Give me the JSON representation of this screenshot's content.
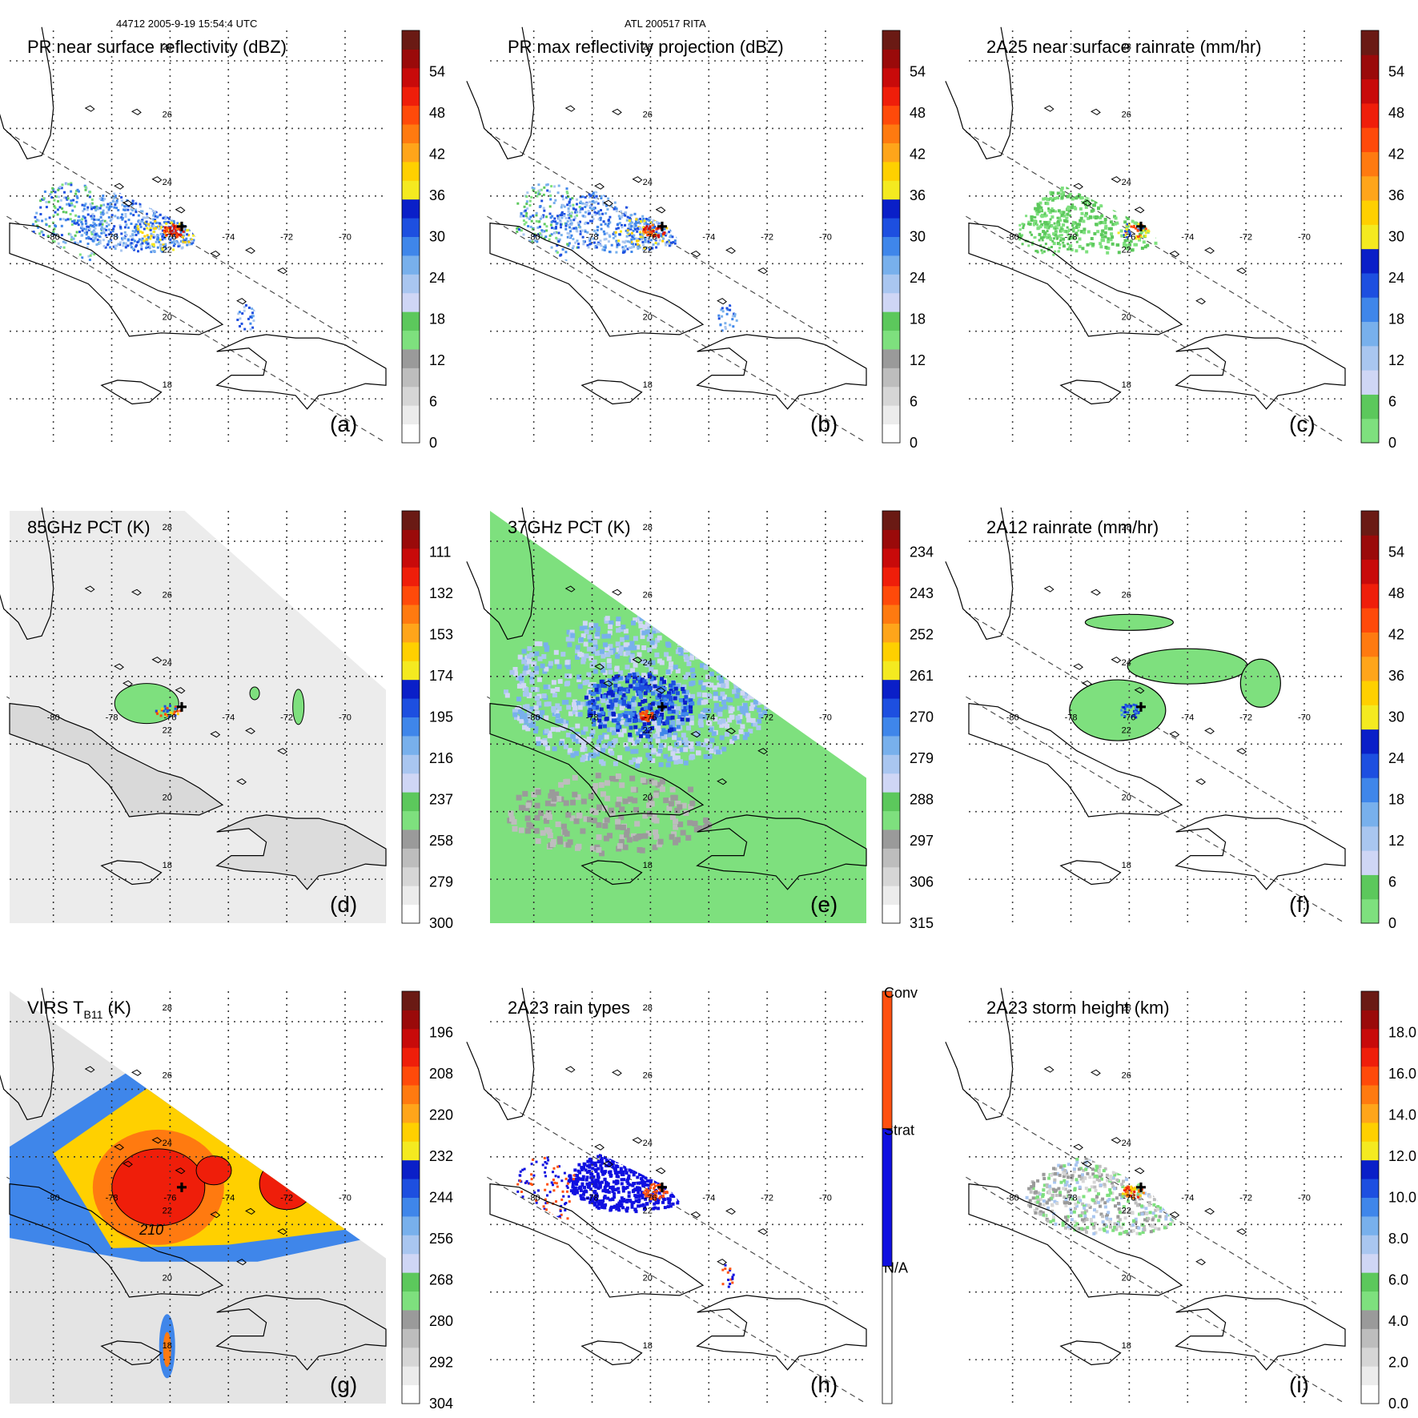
{
  "header": {
    "left": "44712 2005-9-19 15:54:4 UTC",
    "center": "ATL 200517 RITA"
  },
  "map": {
    "lat_labels": [
      "28",
      "26",
      "24",
      "22",
      "20",
      "18"
    ],
    "lon_labels": [
      "-80",
      "-78",
      "-76",
      "-74",
      "-72",
      "-70"
    ],
    "storm_center": {
      "lon": -75.6,
      "lat": 23.1
    }
  },
  "panels": [
    {
      "id": "a",
      "title": "PR near surface reflectivity (dBZ)",
      "label": "(a)",
      "colorbar": [
        "0",
        "6",
        "12",
        "18",
        "24",
        "30",
        "36",
        "42",
        "48",
        "54"
      ],
      "colors": [
        "#ffffff",
        "#ececec",
        "#d6d6d6",
        "#bdbdbd",
        "#9a9a9a",
        "#7ee07e",
        "#5cc85c",
        "#cfd6f5",
        "#a9c6f0",
        "#78b0ec",
        "#3f86ea",
        "#1d4fe0",
        "#0a1fc8",
        "#f4ea20",
        "#ffd000",
        "#ffa51a",
        "#ff7a10",
        "#ff4a0a",
        "#ef1e0a",
        "#c80a0a",
        "#9a0a0a",
        "#6a1a14"
      ]
    },
    {
      "id": "b",
      "title": "PR max reflectivity projection (dBZ)",
      "label": "(b)",
      "colorbar": [
        "0",
        "6",
        "12",
        "18",
        "24",
        "30",
        "36",
        "42",
        "48",
        "54"
      ],
      "colors": [
        "#ffffff",
        "#ececec",
        "#d6d6d6",
        "#bdbdbd",
        "#9a9a9a",
        "#7ee07e",
        "#5cc85c",
        "#cfd6f5",
        "#a9c6f0",
        "#78b0ec",
        "#3f86ea",
        "#1d4fe0",
        "#0a1fc8",
        "#f4ea20",
        "#ffd000",
        "#ffa51a",
        "#ff7a10",
        "#ff4a0a",
        "#ef1e0a",
        "#c80a0a",
        "#9a0a0a",
        "#6a1a14"
      ]
    },
    {
      "id": "c",
      "title": "2A25 near surface rainrate (mm/hr)",
      "label": "(c)",
      "colorbar": [
        "0",
        "6",
        "12",
        "18",
        "24",
        "30",
        "36",
        "42",
        "48",
        "54"
      ],
      "colors": [
        "#7ee07e",
        "#5cc85c",
        "#cfd6f5",
        "#a9c6f0",
        "#78b0ec",
        "#3f86ea",
        "#1d4fe0",
        "#0a1fc8",
        "#f4ea20",
        "#ffd000",
        "#ffa51a",
        "#ff7a10",
        "#ff4a0a",
        "#ef1e0a",
        "#c80a0a",
        "#9a0a0a",
        "#6a1a14"
      ]
    },
    {
      "id": "d",
      "title": "85GHz PCT (K)",
      "label": "(d)",
      "colorbar": [
        "300",
        "279",
        "258",
        "237",
        "216",
        "195",
        "174",
        "153",
        "132",
        "111"
      ],
      "colors": [
        "#ffffff",
        "#ececec",
        "#d6d6d6",
        "#bdbdbd",
        "#9a9a9a",
        "#7ee07e",
        "#5cc85c",
        "#cfd6f5",
        "#a9c6f0",
        "#78b0ec",
        "#3f86ea",
        "#1d4fe0",
        "#0a1fc8",
        "#f4ea20",
        "#ffd000",
        "#ffa51a",
        "#ff7a10",
        "#ff4a0a",
        "#ef1e0a",
        "#c80a0a",
        "#9a0a0a",
        "#6a1a14"
      ]
    },
    {
      "id": "e",
      "title": "37GHz PCT (K)",
      "label": "(e)",
      "colorbar": [
        "315",
        "306",
        "297",
        "288",
        "279",
        "270",
        "261",
        "252",
        "243",
        "234"
      ],
      "colors": [
        "#ffffff",
        "#ececec",
        "#d6d6d6",
        "#bdbdbd",
        "#9a9a9a",
        "#7ee07e",
        "#5cc85c",
        "#cfd6f5",
        "#a9c6f0",
        "#78b0ec",
        "#3f86ea",
        "#1d4fe0",
        "#0a1fc8",
        "#f4ea20",
        "#ffd000",
        "#ffa51a",
        "#ff7a10",
        "#ff4a0a",
        "#ef1e0a",
        "#c80a0a",
        "#9a0a0a",
        "#6a1a14"
      ]
    },
    {
      "id": "f",
      "title": "2A12 rainrate (mm/hr)",
      "label": "(f)",
      "colorbar": [
        "0",
        "6",
        "12",
        "18",
        "24",
        "30",
        "36",
        "42",
        "48",
        "54"
      ],
      "colors": [
        "#7ee07e",
        "#5cc85c",
        "#cfd6f5",
        "#a9c6f0",
        "#78b0ec",
        "#3f86ea",
        "#1d4fe0",
        "#0a1fc8",
        "#f4ea20",
        "#ffd000",
        "#ffa51a",
        "#ff7a10",
        "#ff4a0a",
        "#ef1e0a",
        "#c80a0a",
        "#9a0a0a",
        "#6a1a14"
      ]
    },
    {
      "id": "g",
      "title": "VIRS T",
      "title_sub": "B11",
      "title_suffix": " (K)",
      "label": "(g)",
      "colorbar": [
        "304",
        "292",
        "280",
        "268",
        "256",
        "244",
        "232",
        "220",
        "208",
        "196"
      ],
      "colors": [
        "#ffffff",
        "#ececec",
        "#d6d6d6",
        "#bdbdbd",
        "#9a9a9a",
        "#7ee07e",
        "#5cc85c",
        "#cfd6f5",
        "#a9c6f0",
        "#78b0ec",
        "#3f86ea",
        "#1d4fe0",
        "#0a1fc8",
        "#f4ea20",
        "#ffd000",
        "#ffa51a",
        "#ff7a10",
        "#ff4a0a",
        "#ef1e0a",
        "#c80a0a",
        "#9a0a0a",
        "#6a1a14"
      ],
      "contour_label": "210"
    },
    {
      "id": "h",
      "title": "2A23 rain types",
      "label": "(h)",
      "categories": [
        "N/A",
        "Strat",
        "Conv"
      ],
      "category_colors": [
        "#ffffff",
        "#1010e0",
        "#ff5010"
      ]
    },
    {
      "id": "i",
      "title": "2A23 storm height (km)",
      "label": "(i)",
      "colorbar": [
        "0.0",
        "2.0",
        "4.0",
        "6.0",
        "8.0",
        "10.0",
        "12.0",
        "14.0",
        "16.0",
        "18.0"
      ],
      "colors": [
        "#ffffff",
        "#ececec",
        "#d6d6d6",
        "#bdbdbd",
        "#9a9a9a",
        "#7ee07e",
        "#5cc85c",
        "#cfd6f5",
        "#a9c6f0",
        "#78b0ec",
        "#3f86ea",
        "#1d4fe0",
        "#0a1fc8",
        "#f4ea20",
        "#ffd000",
        "#ffa51a",
        "#ff7a10",
        "#ff4a0a",
        "#ef1e0a",
        "#c80a0a",
        "#9a0a0a",
        "#6a1a14"
      ]
    }
  ]
}
